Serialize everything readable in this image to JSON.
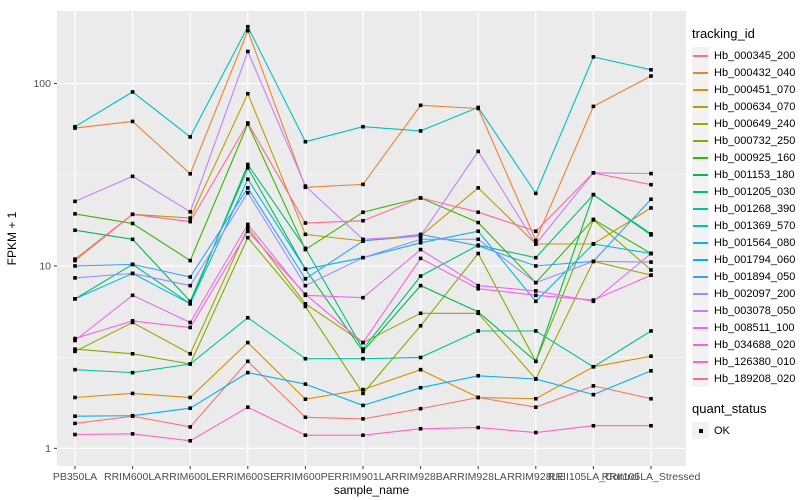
{
  "figure": {
    "y_axis": {
      "label": "FPKM + 1",
      "ticks": [
        {
          "label": "100",
          "value": 100
        },
        {
          "label": "10",
          "value": 10
        },
        {
          "label": "1",
          "value": 1
        }
      ]
    },
    "x_axis": {
      "label": "sample_name"
    },
    "legend": {
      "tracking_title": "tracking_id",
      "quant_title": "quant_status",
      "quant_items": [
        {
          "label": "OK"
        }
      ]
    },
    "colors": {
      "panel_bg": "#EBEBEB",
      "grid": "#FFFFFF",
      "tick_text": "#4D4D4D",
      "point": "#000000",
      "legend_key_bg": "#F2F2F2"
    }
  },
  "chart_data": {
    "type": "line",
    "title": "",
    "xlabel": "sample_name",
    "ylabel": "FPKM + 1",
    "yscale": "log10",
    "ylim": [
      0.8,
      250
    ],
    "grid": true,
    "legend_position": "right",
    "categories": [
      "PB350LA",
      "RRIM600LA",
      "RRIM600LE",
      "RRIM600SE",
      "RRIM600PE",
      "RRIM901LA",
      "RRIM928BA",
      "RRIM928LA",
      "RRIM928LE",
      "RRII105LA_Control",
      "RRII105LA_Stressed"
    ],
    "series": [
      {
        "name": "Hb_000345_200",
        "color": "#F8766D",
        "values": [
          1.37,
          1.5,
          1.31,
          3.0,
          1.48,
          1.45,
          1.65,
          1.9,
          1.68,
          2.2,
          1.87
        ]
      },
      {
        "name": "Hb_000432_040",
        "color": "#EA8331",
        "values": [
          57,
          62,
          32,
          195,
          27,
          28,
          76,
          73,
          13.8,
          75,
          110
        ]
      },
      {
        "name": "Hb_000451_070",
        "color": "#D89000",
        "values": [
          1.9,
          2.0,
          1.9,
          3.8,
          1.86,
          2.1,
          2.7,
          1.9,
          1.87,
          2.8,
          3.2
        ]
      },
      {
        "name": "Hb_000634_070",
        "color": "#C09B00",
        "values": [
          10.7,
          19.2,
          18.3,
          88,
          14.9,
          13.7,
          14.6,
          26.8,
          13.2,
          13.2,
          20.8
        ]
      },
      {
        "name": "Hb_000649_240",
        "color": "#A3A500",
        "values": [
          3.4,
          4.9,
          3.3,
          16.2,
          6.2,
          3.8,
          5.5,
          5.5,
          2.4,
          10.6,
          8.9
        ]
      },
      {
        "name": "Hb_000732_250",
        "color": "#7CAE00",
        "values": [
          3.5,
          3.3,
          2.9,
          14.3,
          6.0,
          2.0,
          4.7,
          11.7,
          3.0,
          17.9,
          9.5
        ]
      },
      {
        "name": "Hb_000925_160",
        "color": "#39B600",
        "values": [
          19.3,
          17.1,
          10.7,
          60,
          12.3,
          19.7,
          23.6,
          17.3,
          8.1,
          18,
          11.7
        ]
      },
      {
        "name": "Hb_001153_180",
        "color": "#00BB4E",
        "values": [
          15.7,
          14,
          6.4,
          34.5,
          9.6,
          3.4,
          7.8,
          5.6,
          3.0,
          24.6,
          14.8
        ]
      },
      {
        "name": "Hb_001205_030",
        "color": "#00BF7D",
        "values": [
          6.6,
          10.2,
          6.2,
          36,
          12.5,
          3.5,
          8.8,
          13,
          11.1,
          24.6,
          15
        ]
      },
      {
        "name": "Hb_001268_390",
        "color": "#00C1A3",
        "values": [
          2.7,
          2.6,
          2.9,
          5.2,
          3.1,
          3.1,
          3.15,
          4.4,
          4.4,
          2.8,
          4.4
        ]
      },
      {
        "name": "Hb_001369_570",
        "color": "#00BFC4",
        "values": [
          58,
          90,
          51,
          205,
          48,
          58,
          55,
          74,
          25,
          140,
          119
        ]
      },
      {
        "name": "Hb_001564_080",
        "color": "#00BAE0",
        "values": [
          6.6,
          9.1,
          6.2,
          29.9,
          9.6,
          11.1,
          13.4,
          15.5,
          6.4,
          13.2,
          11.7
        ]
      },
      {
        "name": "Hb_001794_060",
        "color": "#00B0F6",
        "values": [
          1.5,
          1.51,
          1.66,
          2.6,
          2.25,
          1.72,
          2.15,
          2.5,
          2.4,
          1.97,
          2.66
        ]
      },
      {
        "name": "Hb_001894_050",
        "color": "#35A2FF",
        "values": [
          10.0,
          10.2,
          8.7,
          26.8,
          8.5,
          13.7,
          14.9,
          12.9,
          10.0,
          10.6,
          23.2
        ]
      },
      {
        "name": "Hb_002097_200",
        "color": "#9590FF",
        "values": [
          8.6,
          9.1,
          7.8,
          25.2,
          7.8,
          11.1,
          14.0,
          14.0,
          8.1,
          10.6,
          10.5
        ]
      },
      {
        "name": "Hb_003078_050",
        "color": "#C77CFF",
        "values": [
          22.6,
          31,
          19.8,
          150,
          27.4,
          14,
          14.6,
          42.5,
          13.2,
          32.4,
          32.1
        ]
      },
      {
        "name": "Hb_008511_100",
        "color": "#E76BF3",
        "values": [
          3.9,
          6.9,
          4.9,
          16.9,
          6.9,
          6.7,
          12.3,
          7.8,
          7.3,
          6.4,
          11.7
        ]
      },
      {
        "name": "Hb_034688_020",
        "color": "#FA62DB",
        "values": [
          4.0,
          5.0,
          4.6,
          15.5,
          7.0,
          3.8,
          11.0,
          7.5,
          6.9,
          6.5,
          8.9
        ]
      },
      {
        "name": "Hb_126380_010",
        "color": "#FF61C9",
        "values": [
          1.19,
          1.2,
          1.1,
          1.68,
          1.18,
          1.18,
          1.28,
          1.3,
          1.22,
          1.33,
          1.33
        ]
      },
      {
        "name": "Hb_189208_020",
        "color": "#FF689F",
        "values": [
          10.9,
          19.2,
          17.5,
          60.8,
          17.2,
          17.7,
          23.6,
          19.7,
          15.5,
          32.4,
          27.9
        ]
      }
    ]
  }
}
